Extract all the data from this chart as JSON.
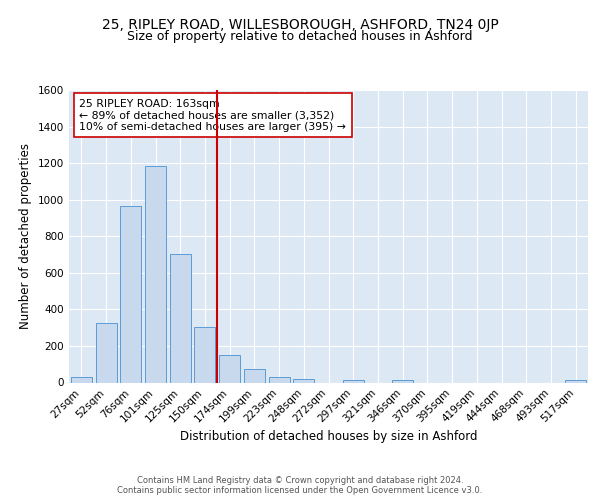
{
  "title1": "25, RIPLEY ROAD, WILLESBOROUGH, ASHFORD, TN24 0JP",
  "title2": "Size of property relative to detached houses in Ashford",
  "xlabel": "Distribution of detached houses by size in Ashford",
  "ylabel": "Number of detached properties",
  "categories": [
    "27sqm",
    "52sqm",
    "76sqm",
    "101sqm",
    "125sqm",
    "150sqm",
    "174sqm",
    "199sqm",
    "223sqm",
    "248sqm",
    "272sqm",
    "297sqm",
    "321sqm",
    "346sqm",
    "370sqm",
    "395sqm",
    "419sqm",
    "444sqm",
    "468sqm",
    "493sqm",
    "517sqm"
  ],
  "values": [
    30,
    325,
    965,
    1185,
    705,
    305,
    150,
    75,
    30,
    20,
    0,
    15,
    0,
    12,
    0,
    0,
    0,
    0,
    0,
    0,
    15
  ],
  "bar_color": "#c8d9ee",
  "bar_edge_color": "#5b9bd5",
  "vline_x": 5.5,
  "vline_color": "#cc0000",
  "annotation_text": "25 RIPLEY ROAD: 163sqm\n← 89% of detached houses are smaller (3,352)\n10% of semi-detached houses are larger (395) →",
  "annotation_box_color": "#ffffff",
  "annotation_box_edge": "#cc0000",
  "ylim": [
    0,
    1600
  ],
  "yticks": [
    0,
    200,
    400,
    600,
    800,
    1000,
    1200,
    1400,
    1600
  ],
  "footer": "Contains HM Land Registry data © Crown copyright and database right 2024.\nContains public sector information licensed under the Open Government Licence v3.0.",
  "bg_color": "#dde8f5",
  "grid_color": "#ffffff",
  "title1_fontsize": 10,
  "title2_fontsize": 9,
  "xlabel_fontsize": 8.5,
  "ylabel_fontsize": 8.5,
  "annotation_fontsize": 7.8,
  "footer_fontsize": 6.0,
  "tick_fontsize": 7.5
}
